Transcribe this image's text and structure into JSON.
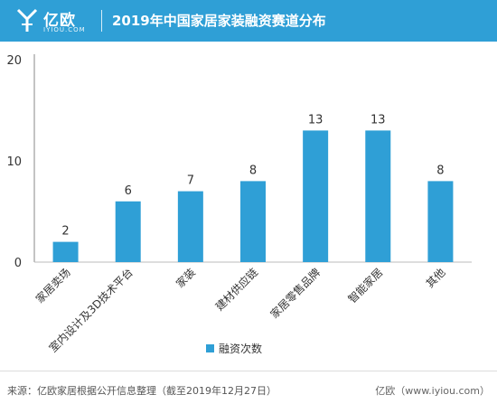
{
  "header": {
    "brand": "亿欧",
    "brand_sub": "IYIOU.COM",
    "title": "2019年中国家居家装融资赛道分布"
  },
  "chart_data": {
    "type": "bar",
    "categories": [
      "家居卖场",
      "室内设计及3D技术平台",
      "家装",
      "建材供应链",
      "家居零售品牌",
      "智能家居",
      "其他"
    ],
    "series": [
      {
        "name": "融资次数",
        "values": [
          2,
          6,
          7,
          8,
          13,
          13,
          8
        ]
      }
    ],
    "ylim": [
      0,
      20
    ],
    "yticks": [
      0,
      10,
      20
    ],
    "grid": false,
    "legend": "bottom",
    "bar_color": "#2f9fd6"
  },
  "footer": {
    "source": "来源：亿欧家居根据公开信息整理（截至2019年12月27日）",
    "brand": "亿欧（www.iyiou.com）"
  },
  "colors": {
    "header_bg": "#2f9fd6",
    "bar": "#2f9fd6"
  }
}
